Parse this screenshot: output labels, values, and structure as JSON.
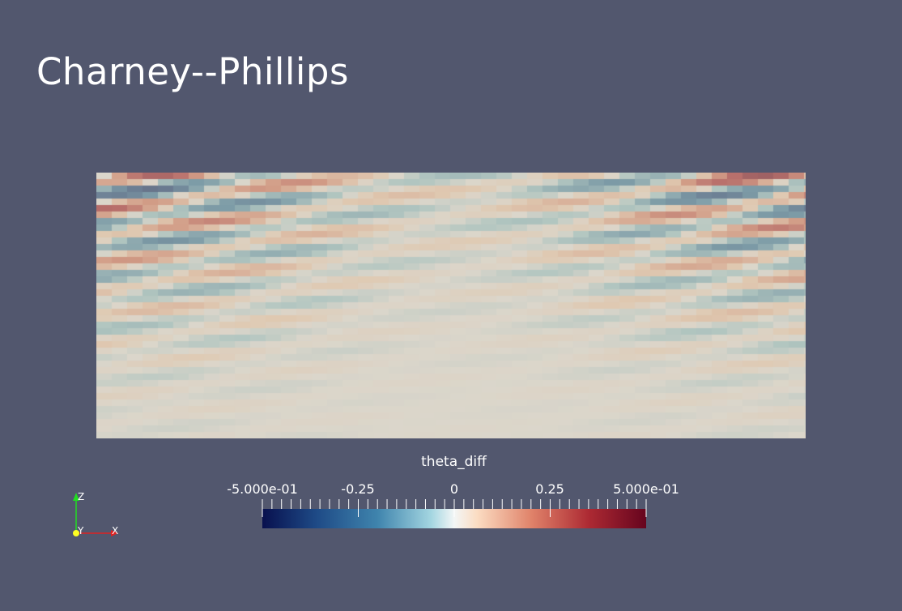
{
  "title": "Charney--Phillips",
  "colorbar": {
    "label": "theta_diff",
    "ticks": [
      {
        "value": -0.5,
        "label": "-5.000e-01"
      },
      {
        "value": -0.25,
        "label": "-0.25"
      },
      {
        "value": 0,
        "label": "0"
      },
      {
        "value": 0.25,
        "label": "0.25"
      },
      {
        "value": 0.5,
        "label": "5.000e-01"
      }
    ],
    "range": [
      -0.5,
      0.5
    ],
    "colormap": [
      "#08104e",
      "#2c6a9e",
      "#7fc0cf",
      "#f3f5f5",
      "#f6cfae",
      "#d5634f",
      "#9c1d2d",
      "#67051e"
    ]
  },
  "axes": {
    "x": "X",
    "y": "Y",
    "z": "Z"
  }
}
